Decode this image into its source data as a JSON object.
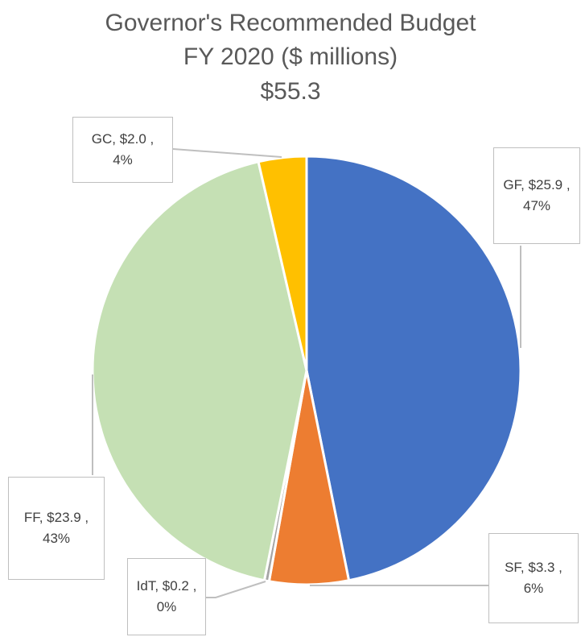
{
  "chart_data": {
    "type": "pie",
    "title": [
      "Governor's Recommended Budget",
      "FY 2020 ($ millions)",
      "$55.3"
    ],
    "categories": [
      "GF",
      "SF",
      "IdT",
      "FF",
      "GC"
    ],
    "values": [
      25.9,
      3.3,
      0.2,
      23.9,
      2.0
    ],
    "value_labels": [
      "GF, $25.9 , 47%",
      "SF, $3.3 , 6%",
      "IdT, $0.2 , 0%",
      "FF,  $23.9 , 43%",
      "GC,  $2.0 , 4%"
    ],
    "colors": [
      "#4472c4",
      "#ed7d31",
      "#a5a5a5",
      "#c5e0b4",
      "#ffc000"
    ]
  }
}
